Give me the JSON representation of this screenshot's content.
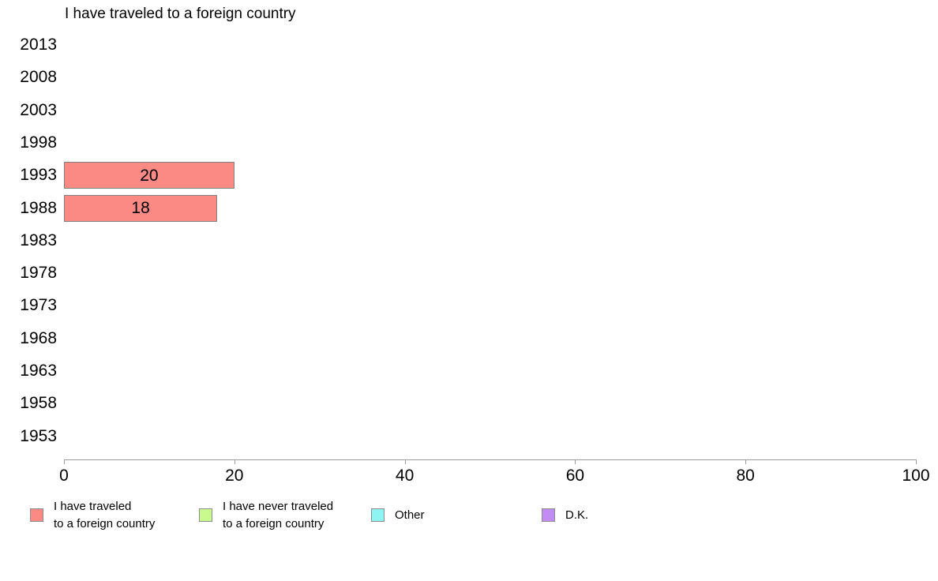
{
  "chart_data": {
    "type": "bar",
    "orientation": "horizontal",
    "title": "I have traveled to a foreign country",
    "categories": [
      "2013",
      "2008",
      "2003",
      "1998",
      "1993",
      "1988",
      "1983",
      "1978",
      "1973",
      "1968",
      "1963",
      "1958",
      "1953"
    ],
    "values": [
      null,
      null,
      null,
      null,
      20,
      18,
      null,
      null,
      null,
      null,
      null,
      null,
      null
    ],
    "bar_value_labels": {
      "1993": "20",
      "1988": "18"
    },
    "xlabel": "",
    "ylabel": "",
    "xlim": [
      0,
      100
    ],
    "x_ticks": [
      0,
      20,
      40,
      60,
      80,
      100
    ],
    "grid": false,
    "legend_position": "bottom",
    "legend": [
      {
        "label": "I have traveled\nto a foreign country",
        "color": "#FB8A84"
      },
      {
        "label": "I have never traveled\nto a foreign country",
        "color": "#C9FA8E"
      },
      {
        "label": "Other",
        "color": "#8DF4F1"
      },
      {
        "label": "D.K.",
        "color": "#C28CF4"
      }
    ]
  },
  "colors": {
    "background": "#FFFFFF",
    "bar_fill": "#FB8A84",
    "bar_border": "#84807C",
    "swatch_border": "#8C8C8C",
    "axis": "#9B9B9B",
    "text": "#000000"
  }
}
